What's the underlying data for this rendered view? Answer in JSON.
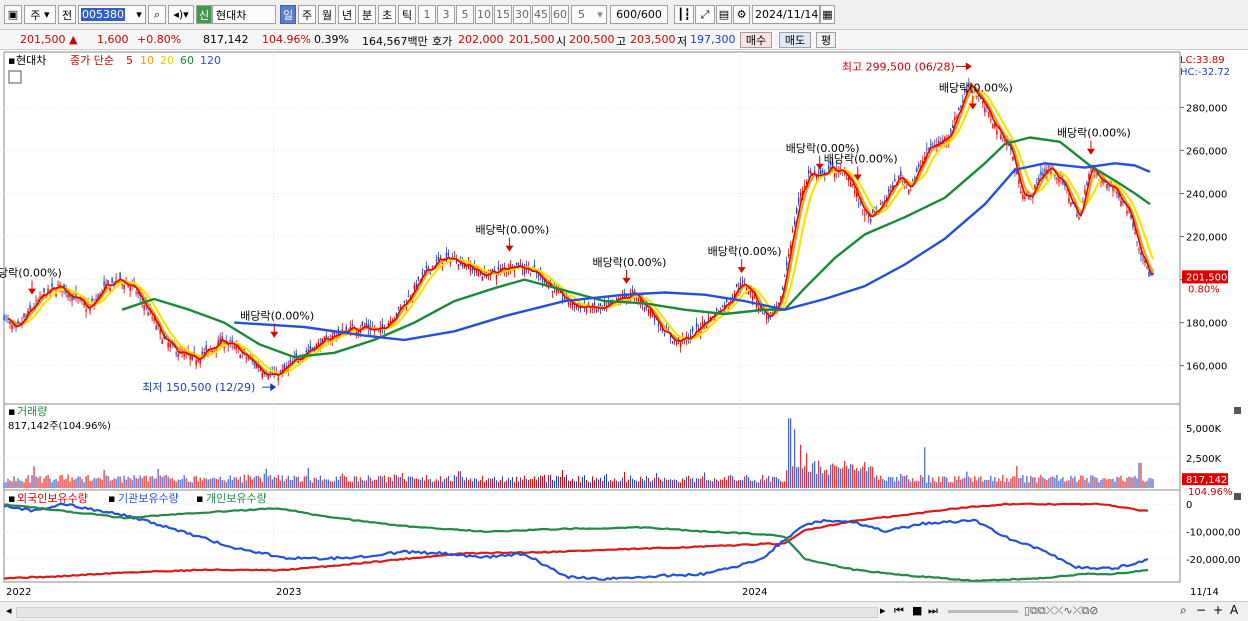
{
  "toolbar": {
    "period_unit": "주",
    "prev_label": "전",
    "stock_code": "005380",
    "badge": "신",
    "stock_name": "현대차",
    "interval_tabs": [
      "일",
      "주",
      "월",
      "년",
      "분",
      "초",
      "틱"
    ],
    "minute_options": [
      "1",
      "3",
      "5",
      "10",
      "15",
      "30",
      "45",
      "60"
    ],
    "interval_value": "5",
    "count_value": "600",
    "count_total": "/600",
    "date_value": "2024/11/14"
  },
  "quote": {
    "price": "201,500",
    "change": "1,600",
    "change_pct": "+0.80%",
    "volume": "817,142",
    "volume_ratio": "104.96%",
    "turnover_rate": "0.39%",
    "trade_value": "164,567백만",
    "bid_label": "호가",
    "bid_value": "202,000",
    "ask_value": "201,500",
    "open_label": "시",
    "open_value": "200,500",
    "high_label": "고",
    "high_value": "203,500",
    "low_label": "저",
    "low_value": "197,300",
    "buy_label": "매수",
    "sell_label": "매도",
    "eval_label": "평"
  },
  "colors": {
    "up": "#e00000",
    "down": "#1a3fc0",
    "ma5": "#e00000",
    "ma10": "#ff9900",
    "ma20": "#f4e600",
    "ma60": "#1a8a3a",
    "ma120": "#2452d6",
    "foreign": "#d81a1a",
    "institution": "#2452d6",
    "individual": "#23884a"
  },
  "chart_data": [
    {
      "type": "line",
      "name": "price",
      "title": "현대차",
      "legend_prefix": "종가 단순",
      "legend_periods": [
        "5",
        "10",
        "20",
        "60",
        "120"
      ],
      "legend_placement": "top-left",
      "lc_label": "LC:33.89",
      "hc_label": "HC:-32.72",
      "ylim": [
        145000,
        302000
      ],
      "yticks": [
        160000,
        180000,
        200000,
        220000,
        240000,
        260000,
        280000
      ],
      "ytick_labels": [
        "160,000",
        "180,000",
        "200,000",
        "220,000",
        "240,000",
        "260,000",
        "280,000"
      ],
      "current_price_label": "201,500",
      "current_change_label": "0.80%",
      "x_labels": [
        "2022",
        "2023",
        "2024"
      ],
      "x_end_label": "11/14",
      "close": [
        [
          0,
          183000
        ],
        [
          12,
          176000
        ],
        [
          25,
          185000
        ],
        [
          40,
          193000
        ],
        [
          55,
          197000
        ],
        [
          70,
          192000
        ],
        [
          85,
          186000
        ],
        [
          100,
          196000
        ],
        [
          115,
          200000
        ],
        [
          130,
          196000
        ],
        [
          145,
          185000
        ],
        [
          160,
          172000
        ],
        [
          175,
          166000
        ],
        [
          190,
          163000
        ],
        [
          205,
          167000
        ],
        [
          218,
          172000
        ],
        [
          232,
          168000
        ],
        [
          245,
          163000
        ],
        [
          258,
          158000
        ],
        [
          272,
          155000
        ],
        [
          285,
          160000
        ],
        [
          300,
          166000
        ],
        [
          315,
          170000
        ],
        [
          330,
          174000
        ],
        [
          345,
          177000
        ],
        [
          360,
          178000
        ],
        [
          375,
          176000
        ],
        [
          390,
          183000
        ],
        [
          405,
          192000
        ],
        [
          420,
          203000
        ],
        [
          435,
          209000
        ],
        [
          450,
          210000
        ],
        [
          465,
          206000
        ],
        [
          480,
          202000
        ],
        [
          495,
          204000
        ],
        [
          510,
          207000
        ],
        [
          525,
          205000
        ],
        [
          540,
          200000
        ],
        [
          555,
          193000
        ],
        [
          570,
          188000
        ],
        [
          585,
          187000
        ],
        [
          600,
          186000
        ],
        [
          615,
          191000
        ],
        [
          630,
          193000
        ],
        [
          645,
          186000
        ],
        [
          660,
          176000
        ],
        [
          672,
          171000
        ],
        [
          685,
          173000
        ],
        [
          700,
          180000
        ],
        [
          712,
          185000
        ],
        [
          725,
          190000
        ],
        [
          735,
          198000
        ],
        [
          745,
          196000
        ],
        [
          755,
          187000
        ],
        [
          765,
          182000
        ],
        [
          775,
          188000
        ],
        [
          785,
          215000
        ],
        [
          795,
          238000
        ],
        [
          805,
          250000
        ],
        [
          815,
          247000
        ],
        [
          825,
          252000
        ],
        [
          835,
          250000
        ],
        [
          845,
          248000
        ],
        [
          855,
          235000
        ],
        [
          865,
          228000
        ],
        [
          875,
          233000
        ],
        [
          885,
          241000
        ],
        [
          895,
          248000
        ],
        [
          905,
          243000
        ],
        [
          915,
          252000
        ],
        [
          925,
          262000
        ],
        [
          935,
          263000
        ],
        [
          945,
          268000
        ],
        [
          955,
          280000
        ],
        [
          965,
          292000
        ],
        [
          975,
          284000
        ],
        [
          985,
          276000
        ],
        [
          995,
          268000
        ],
        [
          1005,
          262000
        ],
        [
          1015,
          243000
        ],
        [
          1025,
          237000
        ],
        [
          1035,
          248000
        ],
        [
          1045,
          252000
        ],
        [
          1055,
          247000
        ],
        [
          1065,
          238000
        ],
        [
          1075,
          228000
        ],
        [
          1085,
          253000
        ],
        [
          1095,
          246000
        ],
        [
          1105,
          244000
        ],
        [
          1115,
          239000
        ],
        [
          1125,
          231000
        ],
        [
          1135,
          214000
        ],
        [
          1145,
          201500
        ]
      ],
      "ma120": [
        [
          230,
          180000
        ],
        [
          300,
          178000
        ],
        [
          360,
          174000
        ],
        [
          400,
          172000
        ],
        [
          450,
          176000
        ],
        [
          500,
          183000
        ],
        [
          560,
          190000
        ],
        [
          620,
          193000
        ],
        [
          660,
          194000
        ],
        [
          700,
          193000
        ],
        [
          740,
          190000
        ],
        [
          780,
          186000
        ],
        [
          820,
          191000
        ],
        [
          860,
          197000
        ],
        [
          900,
          207000
        ],
        [
          940,
          219000
        ],
        [
          980,
          235000
        ],
        [
          1010,
          251000
        ],
        [
          1040,
          254000
        ],
        [
          1080,
          252000
        ],
        [
          1110,
          254000
        ],
        [
          1130,
          253000
        ],
        [
          1145,
          250000
        ]
      ],
      "ma60": [
        [
          118,
          186000
        ],
        [
          150,
          191000
        ],
        [
          185,
          186000
        ],
        [
          220,
          180000
        ],
        [
          255,
          170000
        ],
        [
          290,
          164000
        ],
        [
          330,
          166000
        ],
        [
          370,
          172000
        ],
        [
          410,
          180000
        ],
        [
          450,
          190000
        ],
        [
          490,
          196000
        ],
        [
          520,
          200000
        ],
        [
          560,
          195000
        ],
        [
          600,
          190000
        ],
        [
          640,
          189000
        ],
        [
          680,
          186000
        ],
        [
          720,
          184000
        ],
        [
          760,
          186000
        ],
        [
          780,
          186000
        ],
        [
          800,
          196000
        ],
        [
          830,
          210000
        ],
        [
          860,
          221000
        ],
        [
          900,
          229000
        ],
        [
          940,
          238000
        ],
        [
          980,
          254000
        ],
        [
          1000,
          263000
        ],
        [
          1025,
          266000
        ],
        [
          1055,
          264000
        ],
        [
          1085,
          253000
        ],
        [
          1110,
          246000
        ],
        [
          1130,
          240000
        ],
        [
          1145,
          235000
        ]
      ]
    },
    {
      "type": "bar",
      "name": "volume",
      "title": "거래량",
      "value_label": "817,142주(104.96%)",
      "ylim": [
        0,
        6000000
      ],
      "yticks": [
        2500000,
        5000000
      ],
      "ytick_labels": [
        "2,500K",
        "5,000K"
      ],
      "current_label": "817,142",
      "current_pct_label": "104.96%",
      "spikes": [
        [
          30,
          1800000
        ],
        [
          100,
          1500000
        ],
        [
          262,
          1600000
        ],
        [
          455,
          1400000
        ],
        [
          700,
          1300000
        ],
        [
          785,
          5800000
        ],
        [
          790,
          4900000
        ],
        [
          796,
          3600000
        ],
        [
          802,
          2900000
        ],
        [
          920,
          3400000
        ],
        [
          1135,
          2100000
        ],
        [
          1145,
          817142
        ]
      ]
    },
    {
      "type": "line",
      "name": "holdings",
      "legend": [
        "외국인보유수량",
        "기관보유수량",
        "개인보유수량"
      ],
      "ylim": [
        -27000000,
        3000000
      ],
      "yticks": [
        0,
        -10000000,
        -20000000
      ],
      "ytick_labels": [
        "0",
        "-10,000,00",
        "-20,000,00"
      ],
      "series": [
        {
          "name": "외국인보유수량",
          "points": [
            [
              0,
              -27000000
            ],
            [
              50,
              -26500000
            ],
            [
              120,
              -25000000
            ],
            [
              200,
              -24000000
            ],
            [
              275,
              -24200000
            ],
            [
              330,
              -22500000
            ],
            [
              400,
              -20000000
            ],
            [
              460,
              -18000000
            ],
            [
              540,
              -17500000
            ],
            [
              620,
              -16500000
            ],
            [
              700,
              -15500000
            ],
            [
              760,
              -14500000
            ],
            [
              780,
              -14500000
            ],
            [
              800,
              -9500000
            ],
            [
              850,
              -6000000
            ],
            [
              900,
              -4000000
            ],
            [
              950,
              -1500000
            ],
            [
              1000,
              0
            ],
            [
              1050,
              0
            ],
            [
              1100,
              0
            ],
            [
              1130,
              -2000000
            ],
            [
              1145,
              -2500000
            ]
          ]
        },
        {
          "name": "기관보유수량",
          "points": [
            [
              0,
              -500000
            ],
            [
              30,
              -2500000
            ],
            [
              60,
              0
            ],
            [
              120,
              -4000000
            ],
            [
              170,
              -9000000
            ],
            [
              230,
              -16000000
            ],
            [
              280,
              -19500000
            ],
            [
              320,
              -20000000
            ],
            [
              360,
              -19000000
            ],
            [
              400,
              -17500000
            ],
            [
              440,
              -18000000
            ],
            [
              480,
              -19500000
            ],
            [
              520,
              -18000000
            ],
            [
              560,
              -26500000
            ],
            [
              600,
              -27500000
            ],
            [
              640,
              -26500000
            ],
            [
              700,
              -25500000
            ],
            [
              740,
              -22000000
            ],
            [
              760,
              -19000000
            ],
            [
              780,
              -13000000
            ],
            [
              800,
              -7500000
            ],
            [
              820,
              -6000000
            ],
            [
              850,
              -6500000
            ],
            [
              880,
              -10000000
            ],
            [
              920,
              -7000000
            ],
            [
              970,
              -6000000
            ],
            [
              1000,
              -12000000
            ],
            [
              1040,
              -17000000
            ],
            [
              1070,
              -23000000
            ],
            [
              1110,
              -23500000
            ],
            [
              1145,
              -20000000
            ]
          ]
        },
        {
          "name": "개인보유수량",
          "points": [
            [
              0,
              0
            ],
            [
              60,
              -2500000
            ],
            [
              120,
              -5000000
            ],
            [
              200,
              -3000000
            ],
            [
              275,
              -1500000
            ],
            [
              320,
              -4500000
            ],
            [
              400,
              -8000000
            ],
            [
              480,
              -10000000
            ],
            [
              560,
              -9000000
            ],
            [
              640,
              -8500000
            ],
            [
              700,
              -10000000
            ],
            [
              760,
              -11000000
            ],
            [
              780,
              -12000000
            ],
            [
              800,
              -20000000
            ],
            [
              850,
              -24000000
            ],
            [
              900,
              -26000000
            ],
            [
              970,
              -28000000
            ],
            [
              1040,
              -27000000
            ],
            [
              1080,
              -25500000
            ],
            [
              1110,
              -25500000
            ],
            [
              1145,
              -24000000
            ]
          ]
        }
      ]
    }
  ],
  "annotations": {
    "dividends": [
      {
        "x": 28,
        "price": 193000,
        "label": "당락(0.00%)"
      },
      {
        "x": 270,
        "price": 173000,
        "label": "배당락(0.00%)"
      },
      {
        "x": 505,
        "price": 213000,
        "label": "배당락(0.00%)"
      },
      {
        "x": 622,
        "price": 198000,
        "label": "배당락(0.00%)"
      },
      {
        "x": 737,
        "price": 203000,
        "label": "배당락(0.00%)"
      },
      {
        "x": 815,
        "price": 251000,
        "label": "배당락(0.00%)"
      },
      {
        "x": 853,
        "price": 246000,
        "label": "배당락(0.00%)"
      },
      {
        "x": 968,
        "price": 279000,
        "label": "배당락(0.00%)"
      },
      {
        "x": 1086,
        "price": 258000,
        "label": "배당락(0.00%)"
      }
    ],
    "high": {
      "x": 965,
      "price": 299500,
      "label": "최고 299,500 (06/28)"
    },
    "low": {
      "x": 270,
      "price": 150500,
      "label": "최저 150,500 (12/29)"
    }
  }
}
